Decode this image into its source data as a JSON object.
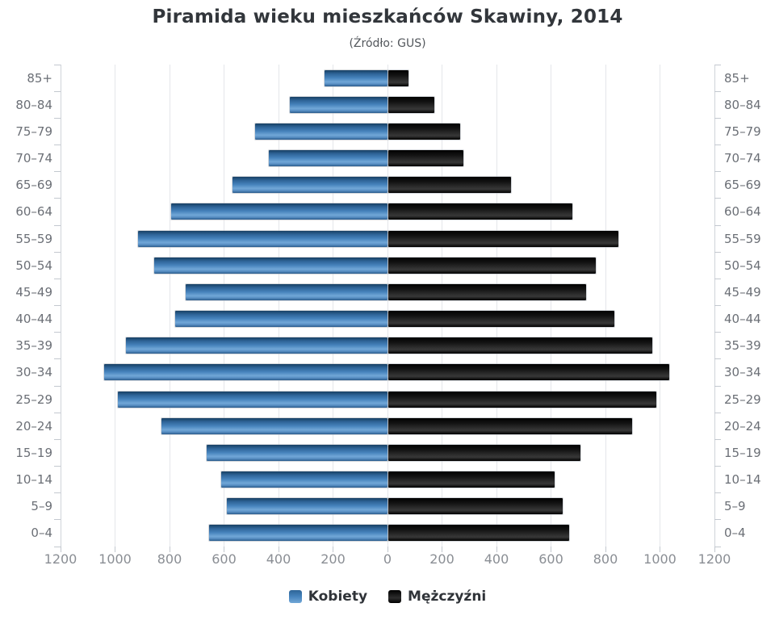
{
  "header": {
    "title": "Piramida wieku mieszkańców Skawiny, 2014",
    "subtitle": "(Źródło: GUS)"
  },
  "legend": {
    "items": [
      {
        "label": "Kobiety",
        "color": "#4683bc"
      },
      {
        "label": "Mężczyźni",
        "color": "#111111"
      }
    ]
  },
  "chart_data": {
    "type": "bar",
    "variant": "population-pyramid",
    "title": "Piramida wieku mieszkańców Skawiny, 2014",
    "subtitle": "(Źródło: GUS)",
    "categories": [
      "85+",
      "80–84",
      "75–79",
      "70–74",
      "65–69",
      "60–64",
      "55–59",
      "50–54",
      "45–49",
      "40–44",
      "35–39",
      "30–34",
      "25–29",
      "20–24",
      "15–19",
      "10–14",
      "5–9",
      "0–4"
    ],
    "series": [
      {
        "name": "Kobiety",
        "side": "left",
        "color": "#4683bc",
        "values": [
          230,
          360,
          485,
          435,
          570,
          795,
          915,
          855,
          740,
          780,
          960,
          1040,
          990,
          830,
          665,
          610,
          590,
          655
        ]
      },
      {
        "name": "Mężczyźni",
        "side": "right",
        "color": "#111111",
        "values": [
          75,
          170,
          265,
          275,
          450,
          675,
          845,
          760,
          725,
          830,
          970,
          1030,
          985,
          895,
          705,
          610,
          640,
          665
        ]
      }
    ],
    "x_axis_tick_labels": [
      "1200",
      "1000",
      "800",
      "600",
      "400",
      "200",
      "0",
      "200",
      "400",
      "600",
      "800",
      "1000",
      "1200"
    ],
    "xlim": [
      -1200,
      1200
    ],
    "tick_interval": 200,
    "grid": true,
    "legend_position": "bottom",
    "age_labels_shown_on": "both-sides"
  }
}
